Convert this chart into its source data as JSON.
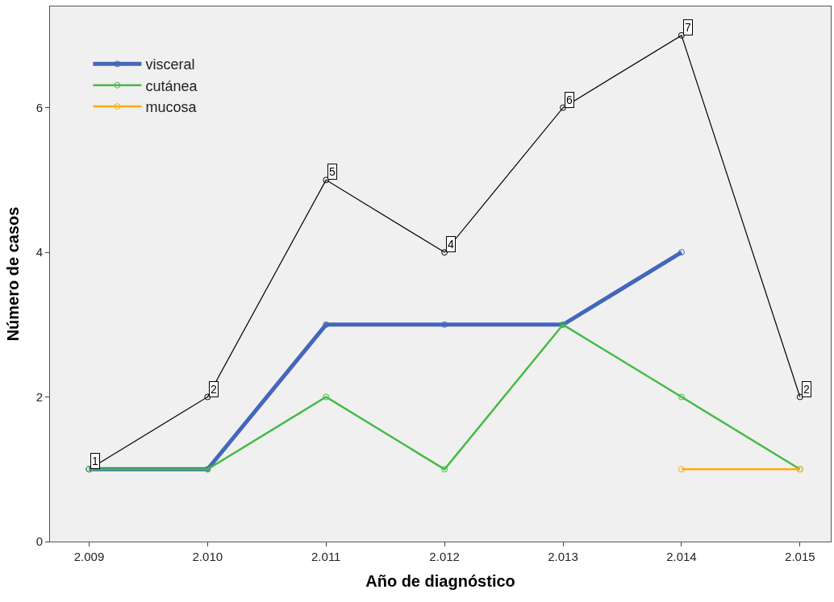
{
  "chart_data": {
    "type": "line",
    "xlabel": "Año de diagnóstico",
    "ylabel": "Número de casos",
    "categories": [
      "2.009",
      "2.010",
      "2.011",
      "2.012",
      "2.013",
      "2.014",
      "2.015"
    ],
    "series": [
      {
        "color": "#000000",
        "values": [
          1,
          2,
          5,
          4,
          6,
          7,
          2
        ],
        "value_labels": [
          "1",
          "2",
          "5",
          "4",
          "6",
          "7",
          "2"
        ]
      },
      {
        "name": "visceral",
        "color": "#4466bb",
        "values": [
          1,
          1,
          3,
          3,
          3,
          4,
          null
        ]
      },
      {
        "name": "cutánea",
        "color": "#44bb44",
        "values": [
          1,
          1,
          2,
          1,
          3,
          2,
          1
        ]
      },
      {
        "name": "mucosa",
        "color": "#ffaa11",
        "values": [
          null,
          null,
          null,
          null,
          null,
          1,
          1
        ]
      }
    ],
    "ylim": [
      0,
      7.4
    ],
    "yticks": [
      0,
      2,
      4,
      6
    ],
    "grid": false,
    "legend": "top left",
    "marker": "circle",
    "line_style": "solid"
  }
}
